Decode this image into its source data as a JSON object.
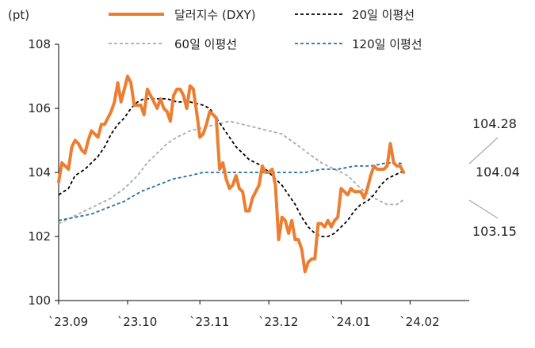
{
  "chart_data": {
    "type": "line",
    "unit_label": "(pt)",
    "ylim": [
      100,
      108
    ],
    "yticks": [
      100,
      102,
      104,
      106,
      108
    ],
    "xlim": [
      0,
      125
    ],
    "xticks": [
      {
        "label": "`23.09",
        "x": 0
      },
      {
        "label": "`23.10",
        "x": 21
      },
      {
        "label": "`23.11",
        "x": 43
      },
      {
        "label": "`23.12",
        "x": 64
      },
      {
        "label": "`24.01",
        "x": 86
      },
      {
        "label": "`24.02",
        "x": 107
      }
    ],
    "legend": [
      {
        "name": "달러지수 (DXY)",
        "color": "#ED7D31",
        "style": "solid"
      },
      {
        "name": "20일 이평선",
        "color": "#000000",
        "style": "dashed"
      },
      {
        "name": "60일 이평선",
        "color": "#AAAAAA",
        "style": "dashed"
      },
      {
        "name": "120일 이평선",
        "color": "#1F6EA8",
        "style": "dashed"
      }
    ],
    "annotations": [
      {
        "text": "104.28",
        "value": 104.28
      },
      {
        "text": "104.04",
        "value": 104.04
      },
      {
        "text": "103.15",
        "value": 103.15
      }
    ],
    "series": [
      {
        "name": "달러지수 (DXY)",
        "color": "#ED7D31",
        "style": "solid",
        "points": [
          [
            0,
            103.7
          ],
          [
            1,
            104.3
          ],
          [
            2,
            104.2
          ],
          [
            3,
            104.1
          ],
          [
            4,
            104.8
          ],
          [
            5,
            105.0
          ],
          [
            6,
            104.9
          ],
          [
            7,
            104.7
          ],
          [
            8,
            104.6
          ],
          [
            9,
            105.0
          ],
          [
            10,
            105.3
          ],
          [
            11,
            105.2
          ],
          [
            12,
            105.1
          ],
          [
            13,
            105.5
          ],
          [
            14,
            105.5
          ],
          [
            15,
            105.7
          ],
          [
            16,
            105.9
          ],
          [
            17,
            106.2
          ],
          [
            18,
            106.8
          ],
          [
            19,
            106.2
          ],
          [
            20,
            106.6
          ],
          [
            21,
            107.0
          ],
          [
            22,
            106.8
          ],
          [
            23,
            106.1
          ],
          [
            24,
            106.1
          ],
          [
            25,
            106.1
          ],
          [
            26,
            105.8
          ],
          [
            27,
            106.6
          ],
          [
            28,
            106.4
          ],
          [
            29,
            106.2
          ],
          [
            30,
            106.0
          ],
          [
            31,
            106.3
          ],
          [
            32,
            106.0
          ],
          [
            33,
            105.9
          ],
          [
            34,
            105.6
          ],
          [
            35,
            106.4
          ],
          [
            36,
            106.6
          ],
          [
            37,
            106.6
          ],
          [
            38,
            106.4
          ],
          [
            39,
            106.0
          ],
          [
            40,
            106.7
          ],
          [
            41,
            106.6
          ],
          [
            42,
            105.9
          ],
          [
            43,
            105.1
          ],
          [
            44,
            105.2
          ],
          [
            45,
            105.5
          ],
          [
            46,
            105.9
          ],
          [
            47,
            105.8
          ],
          [
            48,
            105.7
          ],
          [
            49,
            104.1
          ],
          [
            50,
            104.3
          ],
          [
            51,
            103.8
          ],
          [
            52,
            103.5
          ],
          [
            53,
            103.6
          ],
          [
            54,
            103.9
          ],
          [
            55,
            103.5
          ],
          [
            56,
            103.4
          ],
          [
            57,
            102.8
          ],
          [
            58,
            102.8
          ],
          [
            59,
            103.2
          ],
          [
            60,
            103.4
          ],
          [
            61,
            103.6
          ],
          [
            62,
            104.2
          ],
          [
            63,
            104.0
          ],
          [
            64,
            104.0
          ],
          [
            65,
            104.1
          ],
          [
            66,
            103.6
          ],
          [
            67,
            101.9
          ],
          [
            68,
            102.6
          ],
          [
            69,
            102.5
          ],
          [
            70,
            102.1
          ],
          [
            71,
            102.5
          ],
          [
            72,
            101.9
          ],
          [
            73,
            101.9
          ],
          [
            74,
            101.6
          ],
          [
            75,
            100.9
          ],
          [
            76,
            101.2
          ],
          [
            77,
            101.3
          ],
          [
            78,
            101.3
          ],
          [
            79,
            102.4
          ],
          [
            80,
            102.4
          ],
          [
            81,
            102.3
          ],
          [
            82,
            102.5
          ],
          [
            83,
            102.3
          ],
          [
            84,
            102.5
          ],
          [
            85,
            102.6
          ],
          [
            86,
            103.5
          ],
          [
            87,
            103.4
          ],
          [
            88,
            103.3
          ],
          [
            89,
            103.5
          ],
          [
            90,
            103.4
          ],
          [
            91,
            103.4
          ],
          [
            92,
            103.4
          ],
          [
            93,
            103.2
          ],
          [
            94,
            103.5
          ],
          [
            95,
            103.9
          ],
          [
            96,
            104.2
          ],
          [
            97,
            104.1
          ],
          [
            98,
            104.1
          ],
          [
            99,
            104.1
          ],
          [
            100,
            104.2
          ],
          [
            101,
            104.9
          ],
          [
            102,
            104.3
          ],
          [
            103,
            104.2
          ],
          [
            104,
            104.2
          ],
          [
            105,
            104.0
          ]
        ]
      },
      {
        "name": "20일 이평선",
        "color": "#000000",
        "style": "dashed",
        "points": [
          [
            0,
            103.3
          ],
          [
            3,
            103.5
          ],
          [
            5,
            103.9
          ],
          [
            8,
            104.1
          ],
          [
            10,
            104.3
          ],
          [
            12,
            104.5
          ],
          [
            14,
            104.8
          ],
          [
            16,
            105.2
          ],
          [
            18,
            105.5
          ],
          [
            20,
            105.7
          ],
          [
            22,
            106.0
          ],
          [
            24,
            106.2
          ],
          [
            26,
            106.3
          ],
          [
            30,
            106.3
          ],
          [
            33,
            106.3
          ],
          [
            36,
            106.2
          ],
          [
            40,
            106.2
          ],
          [
            44,
            106.1
          ],
          [
            46,
            106.0
          ],
          [
            48,
            105.7
          ],
          [
            50,
            105.4
          ],
          [
            52,
            105.1
          ],
          [
            54,
            104.8
          ],
          [
            56,
            104.6
          ],
          [
            58,
            104.4
          ],
          [
            60,
            104.3
          ],
          [
            62,
            104.2
          ],
          [
            64,
            104.0
          ],
          [
            66,
            103.8
          ],
          [
            68,
            103.6
          ],
          [
            70,
            103.3
          ],
          [
            72,
            103.0
          ],
          [
            74,
            102.6
          ],
          [
            76,
            102.3
          ],
          [
            78,
            102.1
          ],
          [
            80,
            102.0
          ],
          [
            82,
            102.0
          ],
          [
            84,
            102.1
          ],
          [
            86,
            102.3
          ],
          [
            88,
            102.5
          ],
          [
            90,
            102.8
          ],
          [
            92,
            103.0
          ],
          [
            94,
            103.1
          ],
          [
            96,
            103.3
          ],
          [
            98,
            103.6
          ],
          [
            100,
            103.8
          ],
          [
            102,
            103.9
          ],
          [
            104,
            104.0
          ],
          [
            105,
            104.04
          ]
        ]
      },
      {
        "name": "60일 이평선",
        "color": "#AAAAAA",
        "style": "dashed",
        "points": [
          [
            0,
            102.4
          ],
          [
            4,
            102.6
          ],
          [
            8,
            102.8
          ],
          [
            12,
            103.0
          ],
          [
            16,
            103.2
          ],
          [
            20,
            103.5
          ],
          [
            24,
            103.9
          ],
          [
            27,
            104.3
          ],
          [
            30,
            104.6
          ],
          [
            33,
            104.9
          ],
          [
            36,
            105.1
          ],
          [
            40,
            105.3
          ],
          [
            44,
            105.4
          ],
          [
            48,
            105.5
          ],
          [
            52,
            105.6
          ],
          [
            56,
            105.5
          ],
          [
            60,
            105.4
          ],
          [
            64,
            105.3
          ],
          [
            68,
            105.2
          ],
          [
            72,
            104.9
          ],
          [
            76,
            104.6
          ],
          [
            80,
            104.3
          ],
          [
            84,
            104.1
          ],
          [
            88,
            103.9
          ],
          [
            92,
            103.5
          ],
          [
            96,
            103.2
          ],
          [
            100,
            103.0
          ],
          [
            103,
            103.0
          ],
          [
            105,
            103.15
          ]
        ]
      },
      {
        "name": "120일 이평선",
        "color": "#1F6EA8",
        "style": "dashed",
        "points": [
          [
            0,
            102.5
          ],
          [
            5,
            102.6
          ],
          [
            10,
            102.7
          ],
          [
            15,
            102.9
          ],
          [
            20,
            103.1
          ],
          [
            25,
            103.4
          ],
          [
            30,
            103.6
          ],
          [
            35,
            103.8
          ],
          [
            40,
            103.9
          ],
          [
            44,
            104.0
          ],
          [
            50,
            104.0
          ],
          [
            55,
            104.0
          ],
          [
            60,
            104.0
          ],
          [
            65,
            104.0
          ],
          [
            70,
            104.0
          ],
          [
            75,
            104.0
          ],
          [
            80,
            104.1
          ],
          [
            85,
            104.1
          ],
          [
            90,
            104.2
          ],
          [
            95,
            104.2
          ],
          [
            100,
            104.3
          ],
          [
            105,
            104.28
          ]
        ]
      }
    ]
  }
}
